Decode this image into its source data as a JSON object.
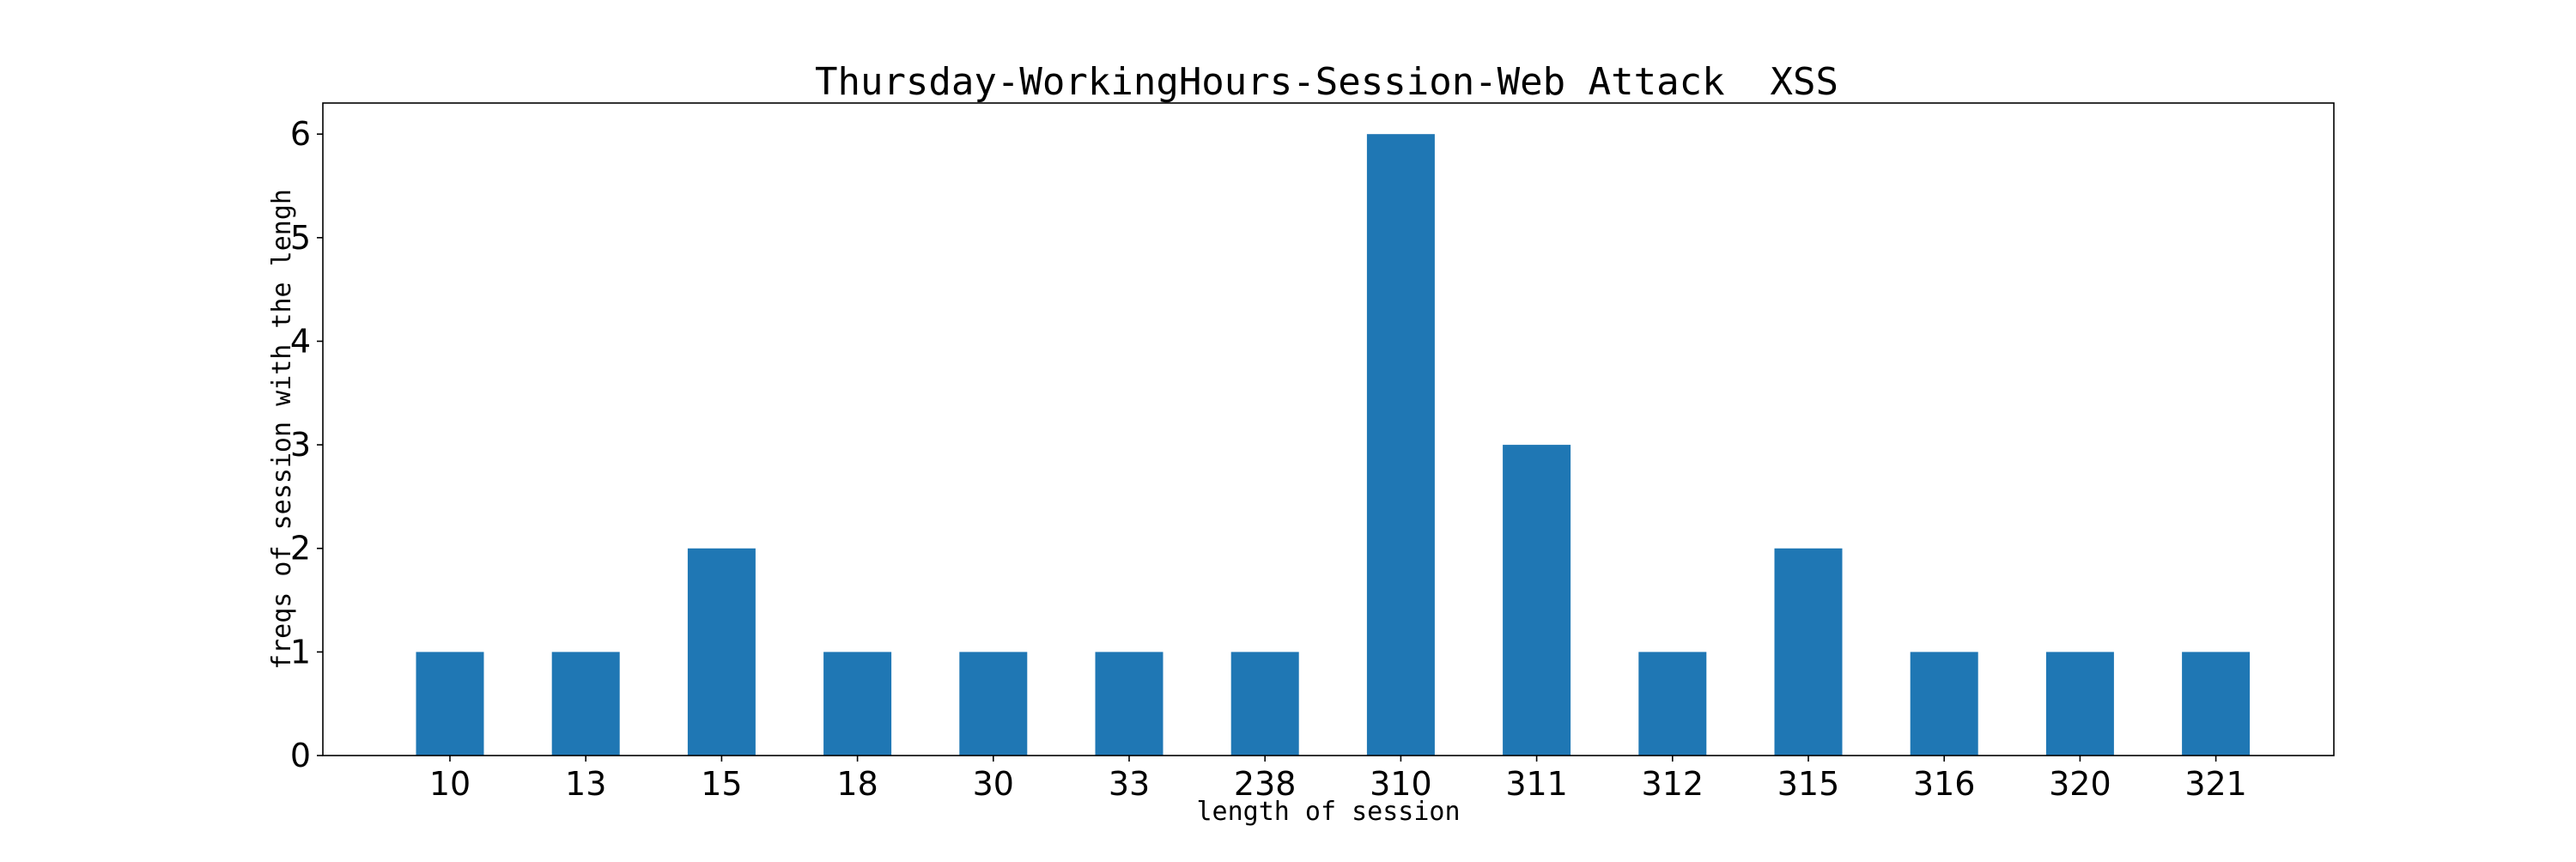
{
  "chart_data": {
    "type": "bar",
    "title": "Thursday-WorkingHours-Session-Web Attack  XSS",
    "xlabel": "length of session",
    "ylabel": "freqs of session with the lengh",
    "categories": [
      "10",
      "13",
      "15",
      "18",
      "30",
      "33",
      "238",
      "310",
      "311",
      "312",
      "315",
      "316",
      "320",
      "321"
    ],
    "values": [
      1,
      1,
      2,
      1,
      1,
      1,
      1,
      6,
      3,
      1,
      2,
      1,
      1,
      1
    ],
    "ylim": [
      0,
      6.3
    ],
    "yticks": [
      0,
      1,
      2,
      3,
      4,
      5,
      6
    ],
    "grid": false,
    "bar_color": "#1f77b4"
  }
}
